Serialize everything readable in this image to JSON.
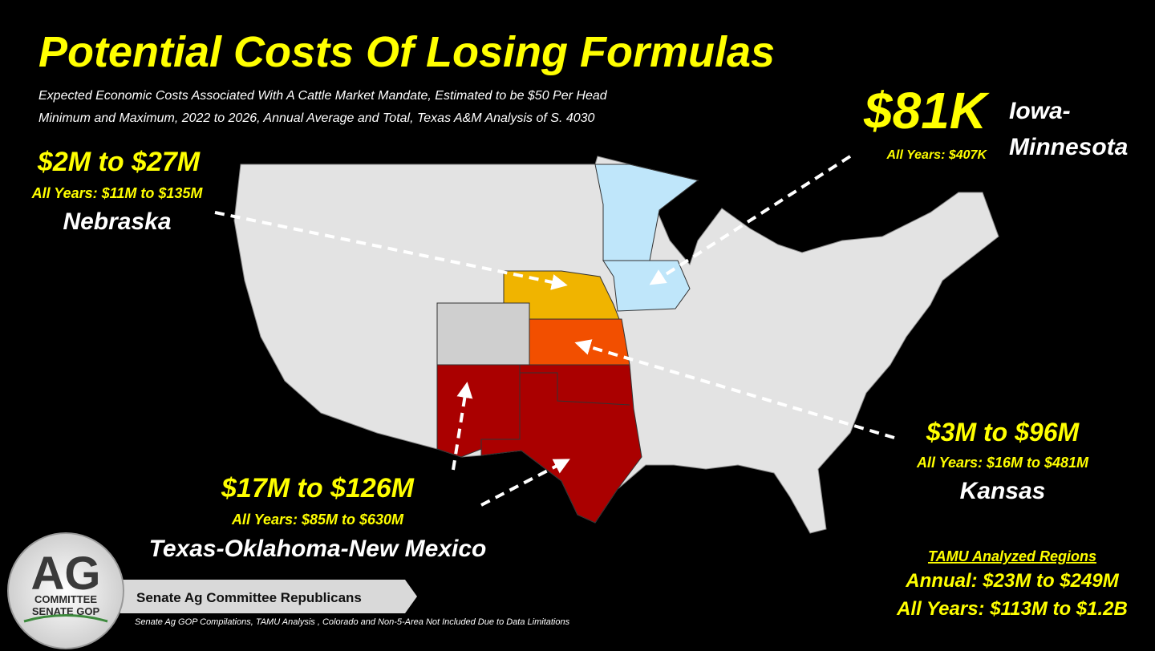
{
  "header": {
    "title": "Potential Costs Of Losing Formulas",
    "subtitle_lines": [
      "Expected Economic Costs Associated With A Cattle Market Mandate, Estimated to be $50 Per Head",
      "Minimum and Maximum, 2022 to 2026, Annual Average and Total, Texas A&M Analysis of S. 4030"
    ]
  },
  "regions": [
    {
      "annual": "$81K",
      "total": "All Years: $407K",
      "name_lines": [
        "Iowa-",
        "Minnesota"
      ]
    },
    {
      "annual": "$2M to $27M",
      "total": "All Years: $11M to $135M",
      "name_lines": [
        "Nebraska"
      ]
    },
    {
      "annual": "$3M to $96M",
      "total": "All Years: $16M to $481M",
      "name_lines": [
        "Kansas"
      ]
    },
    {
      "annual": "$17M to $126M",
      "total": "All Years: $85M to $630M",
      "name_lines": [
        "Texas-Oklahoma-New Mexico"
      ]
    }
  ],
  "summary": {
    "heading": "TAMU Analyzed Regions",
    "annual": "Annual: $23M to $249M",
    "total": "All Years: $113M to $1.2B"
  },
  "logo": {
    "big": "AG",
    "line1": "COMMITTEE",
    "line2": "SENATE GOP"
  },
  "footer": {
    "banner": "Senate Ag Committee Republicans",
    "source": "Senate Ag GOP Compilations, TAMU Analysis , Colorado and Non-5-Area Not Included Due to Data Limitations"
  }
}
